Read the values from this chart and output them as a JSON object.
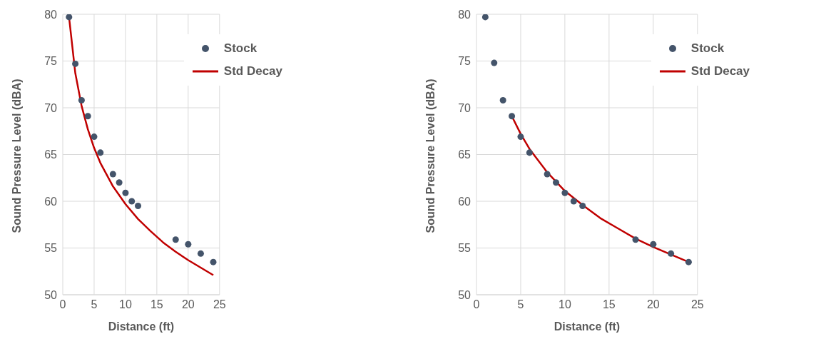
{
  "chart_data": [
    {
      "type": "scatter",
      "xlabel": "Distance (ft)",
      "ylabel": "Sound Pressure Level (dBA)",
      "xlim": [
        0,
        25
      ],
      "xticks": [
        0,
        5,
        10,
        15,
        20,
        25
      ],
      "ylim": [
        50,
        80
      ],
      "yticks": [
        50,
        55,
        60,
        65,
        70,
        75,
        80
      ],
      "grid": true,
      "legend": "top right",
      "series": [
        {
          "name": "Stock",
          "marker": "circle",
          "color": "#44546a",
          "x": [
            1,
            2,
            3,
            4,
            5,
            6,
            8,
            9,
            10,
            11,
            12,
            18,
            20,
            22,
            24
          ],
          "values": [
            79.7,
            74.7,
            70.8,
            69.1,
            66.9,
            65.2,
            62.9,
            62.0,
            60.9,
            60.0,
            59.5,
            55.9,
            55.4,
            54.4,
            53.5
          ]
        },
        {
          "name": "Std Decay",
          "type": "line",
          "marker": "none",
          "color": "#c00000",
          "line_style": "solid",
          "x": [
            1,
            2,
            3,
            4,
            5,
            6,
            8,
            10,
            12,
            14,
            16,
            18,
            20,
            22,
            24
          ],
          "values": [
            79.7,
            73.7,
            70.2,
            67.7,
            65.7,
            64.1,
            61.6,
            59.7,
            58.1,
            56.8,
            55.6,
            54.6,
            53.7,
            52.9,
            52.1
          ]
        }
      ]
    },
    {
      "type": "scatter",
      "xlabel": "Distance (ft)",
      "ylabel": "Sound Pressure Level (dBA)",
      "xlim": [
        0,
        25
      ],
      "xticks": [
        0,
        5,
        10,
        15,
        20,
        25
      ],
      "ylim": [
        50,
        80
      ],
      "yticks": [
        50,
        55,
        60,
        65,
        70,
        75,
        80
      ],
      "grid": true,
      "legend": "top right",
      "series": [
        {
          "name": "Stock",
          "marker": "circle",
          "color": "#44546a",
          "x": [
            1,
            2,
            3,
            4,
            5,
            6,
            8,
            9,
            10,
            11,
            12,
            18,
            20,
            22,
            24
          ],
          "values": [
            79.7,
            74.8,
            70.8,
            69.1,
            66.9,
            65.2,
            62.9,
            62.0,
            60.9,
            60.0,
            59.5,
            55.9,
            55.4,
            54.4,
            53.5
          ]
        },
        {
          "name": "Std Decay",
          "type": "line",
          "marker": "none",
          "color": "#c00000",
          "line_style": "solid",
          "x": [
            4,
            5,
            6,
            8,
            10,
            12,
            14,
            16,
            18,
            20,
            22,
            24
          ],
          "values": [
            69.1,
            67.2,
            65.6,
            63.1,
            61.1,
            59.6,
            58.2,
            57.1,
            56.0,
            55.1,
            54.3,
            53.5
          ]
        }
      ]
    }
  ]
}
